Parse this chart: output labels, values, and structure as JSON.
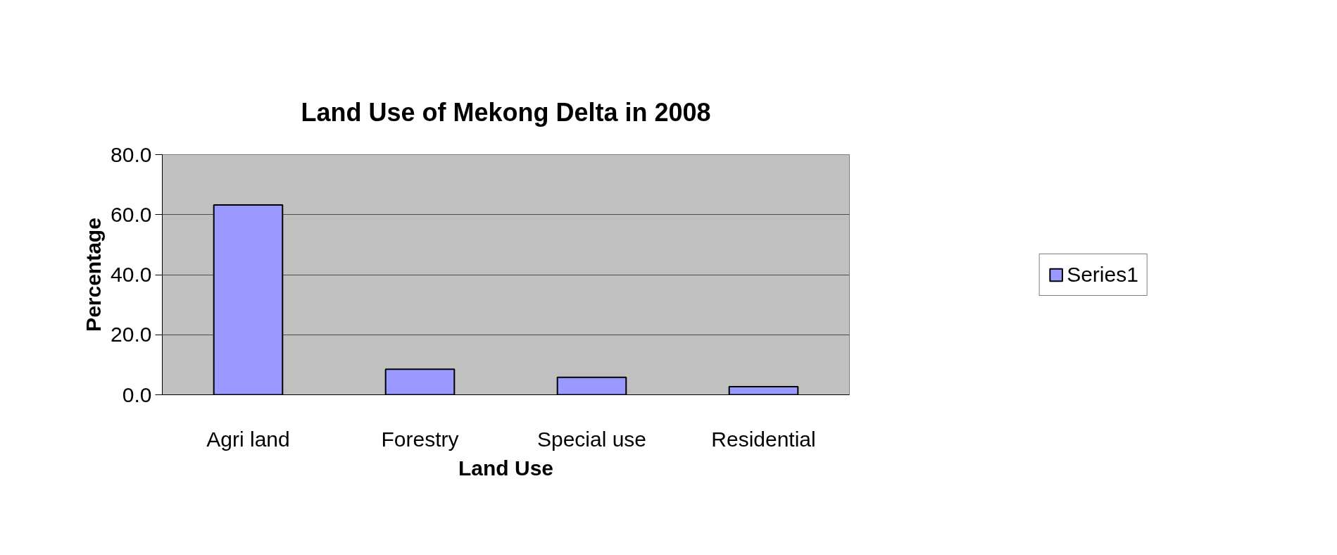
{
  "chart_data": {
    "type": "bar",
    "title": "Land Use of Mekong Delta in 2008",
    "xlabel": "Land Use",
    "ylabel": "Percentage",
    "categories": [
      "Agri land",
      "Forestry",
      "Special use",
      "Residential"
    ],
    "series": [
      {
        "name": "Series1",
        "color": "#9999ff",
        "values": [
          63.2,
          8.5,
          5.8,
          2.7
        ]
      }
    ],
    "ylim": [
      0,
      80
    ],
    "yticks": [
      {
        "value": 0,
        "label": "0.0"
      },
      {
        "value": 20,
        "label": "20.0"
      },
      {
        "value": 40,
        "label": "40.0"
      },
      {
        "value": 60,
        "label": "60.0"
      },
      {
        "value": 80,
        "label": "80.0"
      }
    ],
    "grid": "y",
    "legend": "right"
  }
}
